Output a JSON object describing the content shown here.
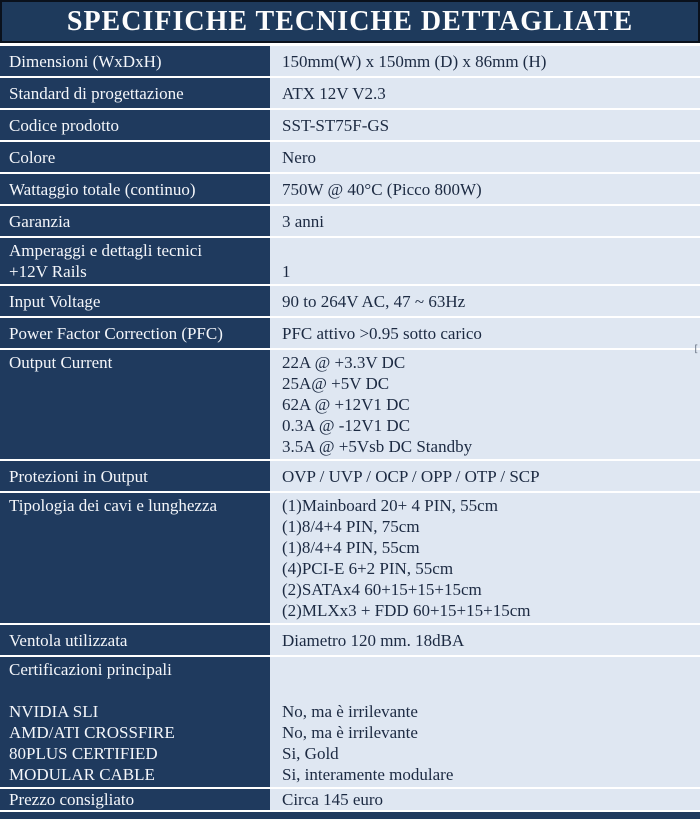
{
  "title": "SPECIFICHE TECNICHE DETTAGLIATE",
  "colors": {
    "navy_cell": "#1f3a5e",
    "title_band": "#1e3a5c",
    "light_cell": "#dfe7f2",
    "label_text": "#f4f6fa",
    "value_text": "#1c2a42",
    "separator": "#ffffff"
  },
  "artifact_glyph": "[",
  "rows": [
    {
      "label_lines": [
        "Dimensioni (WxDxH)"
      ],
      "value_lines": [
        "150mm(W)  x 150mm (D) x 86mm (H)"
      ]
    },
    {
      "label_lines": [
        "Standard di progettazione"
      ],
      "value_lines": [
        "ATX 12V V2.3"
      ]
    },
    {
      "label_lines": [
        "Codice prodotto"
      ],
      "value_lines": [
        "SST-ST75F-GS"
      ]
    },
    {
      "label_lines": [
        "Colore"
      ],
      "value_lines": [
        "Nero"
      ]
    },
    {
      "label_lines": [
        "Wattaggio totale (continuo)"
      ],
      "value_lines": [
        "750W @ 40°C (Picco 800W)"
      ]
    },
    {
      "label_lines": [
        "Garanzia"
      ],
      "value_lines": [
        "3 anni"
      ]
    },
    {
      "label_lines": [
        "Amperaggi e dettagli tecnici",
        "+12V Rails"
      ],
      "value_lines": [
        "",
        "1"
      ]
    },
    {
      "label_lines": [
        "Input Voltage"
      ],
      "value_lines": [
        "90 to 264V AC, 47 ~ 63Hz"
      ]
    },
    {
      "label_lines": [
        "Power Factor Correction (PFC)"
      ],
      "value_lines": [
        "PFC attivo >0.95 sotto carico"
      ]
    },
    {
      "label_lines": [
        "Output Current"
      ],
      "value_lines": [
        "22A @ +3.3V DC",
        "25A@ +5V DC",
        "62A @ +12V1 DC",
        "0.3A @ -12V1 DC",
        "3.5A @ +5Vsb DC Standby"
      ]
    },
    {
      "label_lines": [
        "Protezioni in Output"
      ],
      "value_lines": [
        "OVP / UVP / OCP / OPP / OTP / SCP"
      ]
    },
    {
      "label_lines": [
        "Tipologia dei cavi e lunghezza"
      ],
      "value_lines": [
        "(1)Mainboard 20+ 4 PIN, 55cm",
        "(1)8/4+4 PIN, 75cm",
        "(1)8/4+4 PIN, 55cm",
        "(4)PCI-E 6+2 PIN, 55cm",
        "(2)SATAx4 60+15+15+15cm",
        "(2)MLXx3 + FDD 60+15+15+15cm"
      ]
    },
    {
      "label_lines": [
        "Ventola utilizzata"
      ],
      "value_lines": [
        "Diametro 120 mm. 18dBA"
      ]
    },
    {
      "label_lines": [
        "Certificazioni principali",
        "",
        "NVIDIA SLI",
        "AMD/ATI CROSSFIRE",
        "80PLUS CERTIFIED",
        "MODULAR CABLE"
      ],
      "value_lines": [
        "",
        "",
        "No, ma è irrilevante",
        "No, ma è irrilevante",
        "Si, Gold",
        "Si, interamente modulare"
      ]
    },
    {
      "label_lines": [
        "Prezzo consigliato"
      ],
      "value_lines": [
        "Circa 145 euro"
      ],
      "compact": true
    }
  ]
}
